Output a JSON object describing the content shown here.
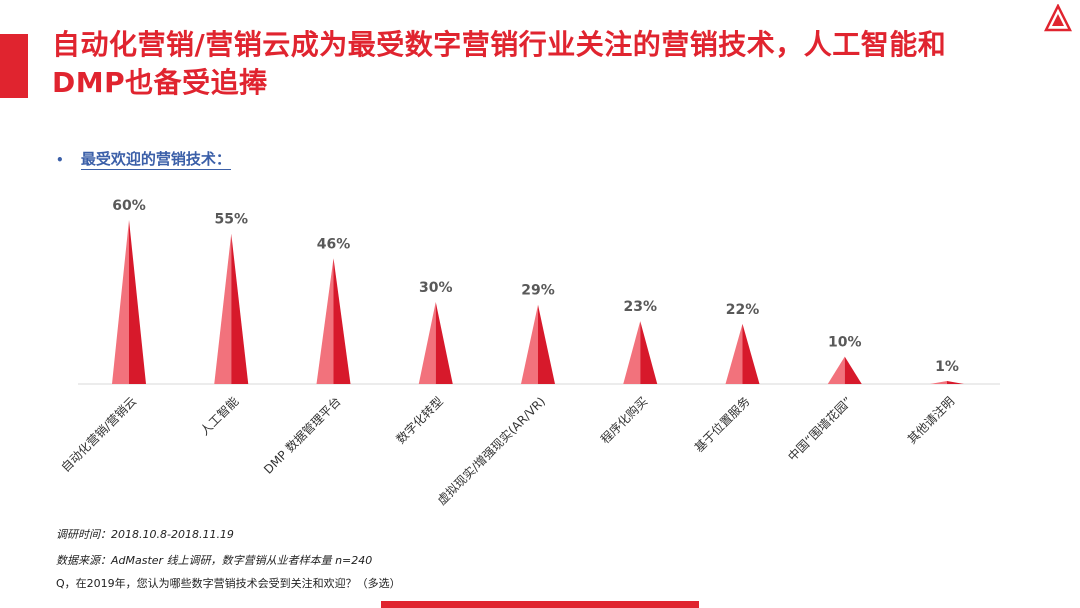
{
  "slide": {
    "title": "自动化营销/营销云成为最受数字营销行业关注的营销技术，人工智能和DMP也备受追捧",
    "subtitle": "最受欢迎的营销技术：",
    "bullet": "•",
    "footnotes": [
      "调研时间：2018.10.8-2018.11.19",
      "数据来源：AdMaster  线上调研，数字营销从业者样本量 n=240",
      "Q，在2019年，您认为哪些数字营销技术会受到关注和欢迎？（多选）"
    ],
    "colors": {
      "accent": "#e0242f",
      "bar_light": "#f2727c",
      "bar_dark": "#d7192b",
      "subtitle": "#3b5fa8",
      "value_label": "#595959"
    }
  },
  "chart_data": {
    "type": "bar",
    "categories": [
      "自动化营销/营销云",
      "人工智能",
      "DMP 数据管理平台",
      "数字化转型",
      "虚拟现实/增强现实(AR/VR)",
      "程序化购买",
      "基于位置服务",
      "中国“围墙花园”",
      "其他请注明"
    ],
    "values": [
      60,
      55,
      46,
      30,
      29,
      23,
      22,
      10,
      1
    ],
    "value_labels": [
      "60%",
      "55%",
      "46%",
      "30%",
      "29%",
      "23%",
      "22%",
      "10%",
      "1%"
    ],
    "unit": "%",
    "ylim": [
      0,
      60
    ],
    "grid": false,
    "legend": "none",
    "title": "最受欢迎的营销技术："
  }
}
